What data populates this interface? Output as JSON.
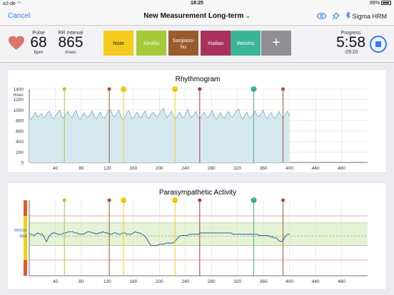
{
  "status_bar": {
    "carrier": "o2-de",
    "time": "18:25",
    "battery": "89%"
  },
  "nav": {
    "cancel_label": "Cancel",
    "title": "New Measurement Long-term",
    "title_chevron": "⌄",
    "device_label": "Sigma HRM",
    "icons": [
      "eye-icon",
      "pin-icon",
      "bluetooth-icon"
    ]
  },
  "metrics": {
    "pulse_label": "Pulse",
    "pulse_value": "68",
    "pulse_unit": "bpm",
    "rr_label": "RR Interval",
    "rr_value": "865",
    "rr_unit": "msec"
  },
  "tags": [
    {
      "label": "Note",
      "color": "#f5cc1d",
      "text_color": "#222"
    },
    {
      "label": "Xinshu",
      "color": "#a6c93a",
      "text_color": "#fff"
    },
    {
      "label": "Sanjiaos-\nhu",
      "color": "#9a5a2c",
      "text_color": "#fff"
    },
    {
      "label": "Xialiao",
      "color": "#a9305a",
      "text_color": "#fff"
    },
    {
      "label": "Weishu",
      "color": "#3cb498",
      "text_color": "#fff"
    },
    {
      "label": "+",
      "color": "#8e8e93",
      "text_color": "#fff"
    }
  ],
  "progress": {
    "label": "Progress",
    "value": "5:58",
    "sub": "-29:20"
  },
  "chart_data": [
    {
      "type": "line",
      "title": "Rhythmogram",
      "ylabel": "msec",
      "ylim": [
        0,
        1400
      ],
      "xlim": [
        0,
        520
      ],
      "y_ticks": [
        0,
        200,
        400,
        600,
        800,
        1000,
        1200,
        1400
      ],
      "x_ticks": [
        40,
        80,
        120,
        160,
        200,
        240,
        280,
        320,
        360,
        400,
        440,
        480
      ],
      "grid": true,
      "series": [
        {
          "values": [
            870,
            820,
            890,
            960,
            860,
            900,
            930,
            850,
            880,
            950,
            980,
            870,
            830,
            900,
            960,
            1000,
            880,
            840,
            920,
            970,
            880,
            850,
            940,
            990,
            870,
            820,
            900,
            950,
            880,
            860,
            930,
            980,
            870,
            830,
            910,
            960,
            870,
            840,
            920,
            990,
            1010,
            900,
            870,
            930,
            1000,
            880,
            820,
            870,
            950,
            990,
            870,
            830,
            900,
            960,
            880,
            850,
            930,
            980,
            860,
            840,
            910,
            960,
            900,
            870,
            930,
            990,
            1030,
            900,
            860,
            920,
            980,
            870,
            830,
            900,
            960,
            880,
            850,
            930,
            1010,
            900,
            860,
            920,
            970,
            870,
            840,
            900,
            960,
            880,
            850,
            930,
            990,
            880,
            820,
            890,
            950,
            870,
            840,
            920,
            970,
            880,
            860,
            930,
            990,
            1020,
            880,
            830,
            900,
            960,
            870,
            850,
            920,
            980,
            900,
            870,
            930,
            1000,
            880,
            830,
            900,
            950,
            870,
            840,
            910,
            970,
            880,
            850,
            930,
            980,
            880
          ]
        }
      ]
    },
    {
      "type": "line",
      "title": "Parasympathetic Activity",
      "ylabel": "RMSSD",
      "reference_value": "31.6",
      "xlim": [
        0,
        520
      ],
      "x_ticks": [
        40,
        80,
        120,
        160,
        200,
        240,
        280,
        320,
        360,
        400,
        440,
        480
      ],
      "series": [
        {
          "values": [
            33,
            33,
            32,
            33,
            34,
            33,
            33,
            30,
            27,
            31,
            33,
            34,
            34,
            33,
            33,
            33,
            34,
            34,
            35,
            35,
            35,
            34,
            34,
            33,
            33,
            33,
            34,
            35,
            35,
            34,
            34,
            33,
            34,
            34,
            35,
            34,
            34,
            33,
            33,
            34,
            34,
            33,
            33,
            34,
            34,
            33,
            33,
            33,
            34,
            35,
            34,
            34,
            33,
            32,
            30,
            27,
            24,
            24,
            24,
            24,
            25,
            25,
            25,
            26,
            26,
            26,
            26,
            27,
            29,
            31,
            32,
            32,
            32,
            32,
            33,
            33,
            33,
            33,
            33,
            34,
            34,
            34,
            34,
            34,
            34,
            34,
            34,
            34,
            34,
            34,
            34,
            34,
            34,
            34,
            33,
            33,
            33,
            33,
            33,
            33,
            33,
            33,
            33,
            33,
            33,
            33,
            32,
            32,
            32,
            32,
            32,
            31,
            31,
            30,
            30,
            28,
            27,
            28,
            31,
            33,
            33
          ]
        }
      ]
    }
  ],
  "markers": [
    {
      "x": 54,
      "color": "#a6c93a",
      "dot": ""
    },
    {
      "x": 123,
      "color": "#9a5a2c",
      "dot": ""
    },
    {
      "x": 145,
      "color": "#f5cc1d",
      "dot": "…"
    },
    {
      "x": 224,
      "color": "#f5cc1d",
      "dot": "…"
    },
    {
      "x": 262,
      "color": "#a9305a",
      "dot": ""
    },
    {
      "x": 345,
      "color": "#3cb498",
      "dot": "…"
    },
    {
      "x": 390,
      "color": "#9a5a2c",
      "dot": ""
    }
  ]
}
